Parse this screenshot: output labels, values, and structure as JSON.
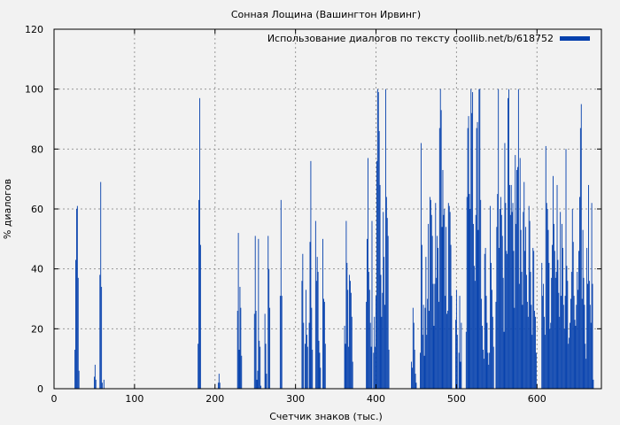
{
  "chart_data": {
    "type": "bar",
    "title": "Сонная Лощина (Вашингтон Ирвинг)",
    "xlabel": "Счетчик знаков (тыс.)",
    "ylabel": "% диалогов",
    "xlim": [
      0,
      680
    ],
    "ylim": [
      0,
      120
    ],
    "xticks": [
      0,
      100,
      200,
      300,
      400,
      500,
      600
    ],
    "yticks": [
      0,
      20,
      40,
      60,
      80,
      100,
      120
    ],
    "grid": true,
    "legend_position": "top-right",
    "series": [
      {
        "name": "Использование диалогов по тексту coollib.net/b/618752",
        "color": "#0641ad",
        "bar_width": 1,
        "points": [
          [
            26,
            13
          ],
          [
            27,
            43
          ],
          [
            28,
            60
          ],
          [
            29,
            61
          ],
          [
            30,
            37
          ],
          [
            31,
            6
          ],
          [
            50,
            4
          ],
          [
            51,
            8
          ],
          [
            52,
            3
          ],
          [
            57,
            38
          ],
          [
            58,
            69
          ],
          [
            59,
            34
          ],
          [
            60,
            2
          ],
          [
            62,
            3
          ],
          [
            179,
            15
          ],
          [
            180,
            63
          ],
          [
            181,
            97
          ],
          [
            182,
            48
          ],
          [
            204,
            2
          ],
          [
            205,
            5
          ],
          [
            206,
            2
          ],
          [
            228,
            26
          ],
          [
            229,
            52
          ],
          [
            230,
            13
          ],
          [
            231,
            34
          ],
          [
            232,
            27
          ],
          [
            233,
            11
          ],
          [
            249,
            25
          ],
          [
            250,
            51
          ],
          [
            251,
            26
          ],
          [
            252,
            3
          ],
          [
            253,
            6
          ],
          [
            254,
            50
          ],
          [
            255,
            16
          ],
          [
            256,
            14
          ],
          [
            257,
            1
          ],
          [
            262,
            25
          ],
          [
            263,
            15
          ],
          [
            264,
            5
          ],
          [
            266,
            51
          ],
          [
            267,
            40
          ],
          [
            268,
            27
          ],
          [
            281,
            31
          ],
          [
            282,
            63
          ],
          [
            283,
            31
          ],
          [
            308,
            36
          ],
          [
            309,
            45
          ],
          [
            310,
            22
          ],
          [
            312,
            15
          ],
          [
            313,
            33
          ],
          [
            314,
            18
          ],
          [
            315,
            14
          ],
          [
            317,
            22
          ],
          [
            318,
            49
          ],
          [
            319,
            76
          ],
          [
            320,
            27
          ],
          [
            321,
            13
          ],
          [
            325,
            56
          ],
          [
            326,
            36
          ],
          [
            327,
            44
          ],
          [
            328,
            39
          ],
          [
            329,
            16
          ],
          [
            330,
            12
          ],
          [
            331,
            7
          ],
          [
            334,
            50
          ],
          [
            335,
            30
          ],
          [
            336,
            29
          ],
          [
            337,
            15
          ],
          [
            361,
            21
          ],
          [
            362,
            15
          ],
          [
            363,
            56
          ],
          [
            364,
            42
          ],
          [
            365,
            33
          ],
          [
            366,
            14
          ],
          [
            367,
            38
          ],
          [
            368,
            36
          ],
          [
            369,
            32
          ],
          [
            370,
            24
          ],
          [
            371,
            9
          ],
          [
            388,
            29
          ],
          [
            389,
            50
          ],
          [
            390,
            77
          ],
          [
            391,
            39
          ],
          [
            392,
            33
          ],
          [
            393,
            22
          ],
          [
            394,
            14
          ],
          [
            395,
            56
          ],
          [
            397,
            12
          ],
          [
            398,
            24
          ],
          [
            399,
            14
          ],
          [
            400,
            31
          ],
          [
            401,
            76
          ],
          [
            402,
            100
          ],
          [
            403,
            99
          ],
          [
            404,
            86
          ],
          [
            405,
            68
          ],
          [
            406,
            38
          ],
          [
            407,
            24
          ],
          [
            408,
            32
          ],
          [
            409,
            59
          ],
          [
            410,
            44
          ],
          [
            411,
            28
          ],
          [
            412,
            100
          ],
          [
            413,
            64
          ],
          [
            414,
            57
          ],
          [
            415,
            51
          ],
          [
            416,
            13
          ],
          [
            444,
            9
          ],
          [
            445,
            7
          ],
          [
            446,
            27
          ],
          [
            447,
            22
          ],
          [
            448,
            13
          ],
          [
            449,
            5
          ],
          [
            450,
            2
          ],
          [
            455,
            12
          ],
          [
            456,
            82
          ],
          [
            457,
            48
          ],
          [
            458,
            18
          ],
          [
            459,
            28
          ],
          [
            460,
            11
          ],
          [
            461,
            27
          ],
          [
            462,
            44
          ],
          [
            463,
            18
          ],
          [
            464,
            30
          ],
          [
            465,
            55
          ],
          [
            466,
            26
          ],
          [
            467,
            64
          ],
          [
            468,
            63
          ],
          [
            469,
            58
          ],
          [
            470,
            51
          ],
          [
            471,
            35
          ],
          [
            472,
            21
          ],
          [
            473,
            35
          ],
          [
            474,
            62
          ],
          [
            475,
            37
          ],
          [
            476,
            51
          ],
          [
            477,
            47
          ],
          [
            478,
            29
          ],
          [
            479,
            87
          ],
          [
            480,
            100
          ],
          [
            481,
            93
          ],
          [
            482,
            54
          ],
          [
            483,
            73
          ],
          [
            484,
            58
          ],
          [
            485,
            60
          ],
          [
            486,
            31
          ],
          [
            487,
            54
          ],
          [
            488,
            25
          ],
          [
            489,
            26
          ],
          [
            490,
            62
          ],
          [
            491,
            61
          ],
          [
            492,
            59
          ],
          [
            493,
            48
          ],
          [
            494,
            31
          ],
          [
            499,
            23
          ],
          [
            500,
            33
          ],
          [
            501,
            18
          ],
          [
            503,
            12
          ],
          [
            504,
            31
          ],
          [
            505,
            9
          ],
          [
            506,
            22
          ],
          [
            512,
            19
          ],
          [
            513,
            64
          ],
          [
            514,
            87
          ],
          [
            515,
            91
          ],
          [
            516,
            65
          ],
          [
            517,
            60
          ],
          [
            518,
            100
          ],
          [
            519,
            92
          ],
          [
            520,
            99
          ],
          [
            521,
            55
          ],
          [
            522,
            41
          ],
          [
            523,
            36
          ],
          [
            524,
            58
          ],
          [
            525,
            87
          ],
          [
            526,
            89
          ],
          [
            527,
            53
          ],
          [
            528,
            100
          ],
          [
            529,
            100
          ],
          [
            530,
            63
          ],
          [
            531,
            30
          ],
          [
            532,
            21
          ],
          [
            533,
            13
          ],
          [
            534,
            10
          ],
          [
            535,
            45
          ],
          [
            536,
            47
          ],
          [
            537,
            31
          ],
          [
            538,
            22
          ],
          [
            539,
            12
          ],
          [
            540,
            8
          ],
          [
            541,
            12
          ],
          [
            542,
            61
          ],
          [
            543,
            42
          ],
          [
            544,
            33
          ],
          [
            545,
            24
          ],
          [
            546,
            14
          ],
          [
            549,
            29
          ],
          [
            550,
            54
          ],
          [
            551,
            65
          ],
          [
            552,
            100
          ],
          [
            553,
            47
          ],
          [
            554,
            60
          ],
          [
            555,
            64
          ],
          [
            556,
            58
          ],
          [
            557,
            51
          ],
          [
            558,
            37
          ],
          [
            559,
            19
          ],
          [
            560,
            82
          ],
          [
            561,
            62
          ],
          [
            562,
            46
          ],
          [
            563,
            45
          ],
          [
            564,
            97
          ],
          [
            565,
            100
          ],
          [
            566,
            68
          ],
          [
            567,
            58
          ],
          [
            568,
            68
          ],
          [
            569,
            59
          ],
          [
            570,
            62
          ],
          [
            571,
            46
          ],
          [
            572,
            27
          ],
          [
            573,
            78
          ],
          [
            574,
            55
          ],
          [
            575,
            73
          ],
          [
            576,
            74
          ],
          [
            577,
            100
          ],
          [
            578,
            35
          ],
          [
            579,
            77
          ],
          [
            580,
            53
          ],
          [
            581,
            39
          ],
          [
            582,
            28
          ],
          [
            583,
            59
          ],
          [
            584,
            69
          ],
          [
            585,
            46
          ],
          [
            586,
            54
          ],
          [
            587,
            38
          ],
          [
            588,
            29
          ],
          [
            589,
            24
          ],
          [
            590,
            61
          ],
          [
            591,
            56
          ],
          [
            592,
            39
          ],
          [
            593,
            28
          ],
          [
            594,
            18
          ],
          [
            595,
            47
          ],
          [
            596,
            46
          ],
          [
            597,
            26
          ],
          [
            598,
            24
          ],
          [
            599,
            12
          ],
          [
            606,
            42
          ],
          [
            607,
            31
          ],
          [
            608,
            35
          ],
          [
            609,
            24
          ],
          [
            610,
            18
          ],
          [
            611,
            81
          ],
          [
            612,
            62
          ],
          [
            613,
            60
          ],
          [
            614,
            53
          ],
          [
            615,
            42
          ],
          [
            616,
            20
          ],
          [
            617,
            22
          ],
          [
            618,
            37
          ],
          [
            619,
            48
          ],
          [
            620,
            71
          ],
          [
            621,
            55
          ],
          [
            622,
            46
          ],
          [
            623,
            37
          ],
          [
            624,
            39
          ],
          [
            625,
            68
          ],
          [
            626,
            43
          ],
          [
            627,
            32
          ],
          [
            628,
            24
          ],
          [
            629,
            59
          ],
          [
            630,
            31
          ],
          [
            631,
            55
          ],
          [
            632,
            47
          ],
          [
            633,
            28
          ],
          [
            634,
            20
          ],
          [
            635,
            31
          ],
          [
            636,
            80
          ],
          [
            637,
            41
          ],
          [
            638,
            36
          ],
          [
            639,
            15
          ],
          [
            640,
            17
          ],
          [
            641,
            22
          ],
          [
            642,
            30
          ],
          [
            643,
            39
          ],
          [
            644,
            60
          ],
          [
            645,
            49
          ],
          [
            646,
            31
          ],
          [
            647,
            23
          ],
          [
            648,
            21
          ],
          [
            649,
            28
          ],
          [
            650,
            39
          ],
          [
            651,
            33
          ],
          [
            652,
            46
          ],
          [
            653,
            64
          ],
          [
            654,
            87
          ],
          [
            655,
            95
          ],
          [
            656,
            30
          ],
          [
            657,
            53
          ],
          [
            658,
            37
          ],
          [
            659,
            28
          ],
          [
            660,
            15
          ],
          [
            661,
            10
          ],
          [
            662,
            47
          ],
          [
            663,
            35
          ],
          [
            664,
            68
          ],
          [
            665,
            36
          ],
          [
            666,
            28
          ],
          [
            667,
            22
          ],
          [
            668,
            62
          ],
          [
            669,
            35
          ],
          [
            670,
            3
          ]
        ]
      }
    ]
  }
}
